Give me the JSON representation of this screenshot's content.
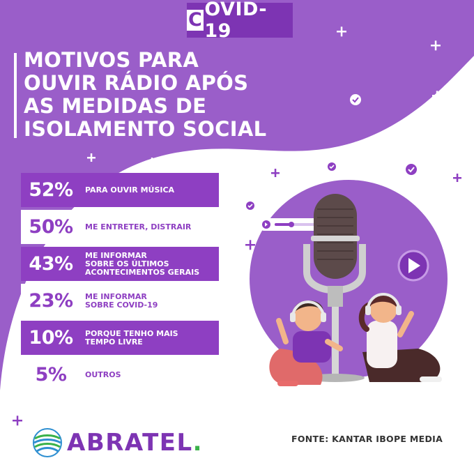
{
  "badge": {
    "first_letter": "C",
    "rest": "OVID-19"
  },
  "title": {
    "lines": [
      "MOTIVOS PARA",
      "OUVIR RÁDIO APÓS",
      "AS MEDIDAS DE",
      "ISOLAMENTO SOCIAL"
    ]
  },
  "chart_data": {
    "type": "bar",
    "title": "MOTIVOS PARA OUVIR RÁDIO APÓS AS MEDIDAS DE ISOLAMENTO SOCIAL",
    "unit": "%",
    "categories": [
      "PARA OUVIR MÚSICA",
      "ME ENTRETER, DISTRAIR",
      "ME INFORMAR SOBRE OS ÚLTIMOS ACONTECIMENTOS GERAIS",
      "ME INFORMAR SOBRE COVID-19",
      "PORQUE TENHO MAIS TEMPO LIVRE",
      "OUTROS"
    ],
    "values": [
      52,
      50,
      43,
      23,
      10,
      5
    ]
  },
  "rows": [
    {
      "pct": "52%",
      "lines": [
        "PARA OUVIR MÚSICA"
      ]
    },
    {
      "pct": "50%",
      "lines": [
        "ME ENTRETER, DISTRAIR"
      ]
    },
    {
      "pct": "43%",
      "lines": [
        "ME INFORMAR",
        "SOBRE OS ÚLTIMOS",
        "ACONTECIMENTOS GERAIS"
      ]
    },
    {
      "pct": "23%",
      "lines": [
        "ME INFORMAR",
        "SOBRE COVID-19"
      ]
    },
    {
      "pct": "10%",
      "lines": [
        "PORQUE TENHO MAIS",
        "TEMPO LIVRE"
      ]
    },
    {
      "pct": "5%",
      "lines": [
        "OUTROS"
      ]
    }
  ],
  "logo": {
    "name": "ABRATEL",
    "dot": "."
  },
  "source": "FONTE: KANTAR IBOPE MEDIA",
  "colors": {
    "background": "#9a5ec9",
    "accent": "#8e3fc2",
    "badge": "#7d34b3",
    "logo_green": "#3bb24a",
    "white": "#ffffff"
  }
}
